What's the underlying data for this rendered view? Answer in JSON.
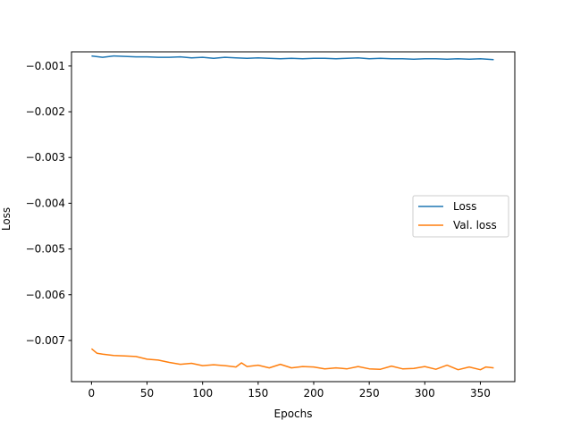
{
  "chart_data": {
    "type": "line",
    "title": "",
    "xlabel": "Epochs",
    "ylabel": "Loss",
    "xlim": [
      -18,
      381
    ],
    "ylim": [
      -0.0079,
      -0.00069
    ],
    "xticks": [
      0,
      50,
      100,
      150,
      200,
      250,
      300,
      350
    ],
    "xtick_labels": [
      "0",
      "50",
      "100",
      "150",
      "200",
      "250",
      "300",
      "350"
    ],
    "yticks": [
      -0.007,
      -0.006,
      -0.005,
      -0.004,
      -0.003,
      -0.002,
      -0.001
    ],
    "ytick_labels": [
      "−0.007",
      "−0.006",
      "−0.005",
      "−0.004",
      "−0.003",
      "−0.002",
      "−0.001"
    ],
    "legend_position": "center-right",
    "series": [
      {
        "name": "Loss",
        "color": "#1f77b4",
        "x": [
          0,
          10,
          20,
          30,
          40,
          50,
          60,
          70,
          80,
          90,
          100,
          110,
          120,
          130,
          140,
          150,
          160,
          170,
          180,
          190,
          200,
          210,
          220,
          230,
          240,
          250,
          260,
          270,
          280,
          290,
          300,
          310,
          320,
          330,
          340,
          350,
          362
        ],
        "y": [
          -0.00078,
          -0.00081,
          -0.00078,
          -0.00079,
          -0.0008,
          -0.0008,
          -0.00081,
          -0.00081,
          -0.0008,
          -0.00082,
          -0.00081,
          -0.00083,
          -0.00081,
          -0.00082,
          -0.00083,
          -0.00082,
          -0.00083,
          -0.00084,
          -0.00083,
          -0.00084,
          -0.00083,
          -0.00083,
          -0.00084,
          -0.00083,
          -0.00082,
          -0.00084,
          -0.00083,
          -0.00084,
          -0.00084,
          -0.00085,
          -0.00084,
          -0.00084,
          -0.00085,
          -0.00084,
          -0.00085,
          -0.00084,
          -0.00086
        ]
      },
      {
        "name": "Val. loss",
        "color": "#ff7f0e",
        "x": [
          0,
          5,
          10,
          20,
          30,
          40,
          50,
          60,
          70,
          80,
          90,
          100,
          110,
          120,
          130,
          135,
          140,
          150,
          160,
          170,
          180,
          190,
          200,
          210,
          220,
          230,
          240,
          250,
          260,
          270,
          280,
          290,
          300,
          310,
          320,
          330,
          340,
          350,
          355,
          362
        ],
        "y": [
          -0.00718,
          -0.00728,
          -0.0073,
          -0.00733,
          -0.00734,
          -0.00735,
          -0.00741,
          -0.00743,
          -0.00748,
          -0.00752,
          -0.0075,
          -0.00755,
          -0.00753,
          -0.00755,
          -0.00758,
          -0.00749,
          -0.00757,
          -0.00754,
          -0.0076,
          -0.00752,
          -0.0076,
          -0.00757,
          -0.00758,
          -0.00762,
          -0.0076,
          -0.00762,
          -0.00757,
          -0.00762,
          -0.00763,
          -0.00756,
          -0.00762,
          -0.00761,
          -0.00757,
          -0.00763,
          -0.00754,
          -0.00764,
          -0.00758,
          -0.00764,
          -0.00758,
          -0.0076
        ]
      }
    ]
  }
}
